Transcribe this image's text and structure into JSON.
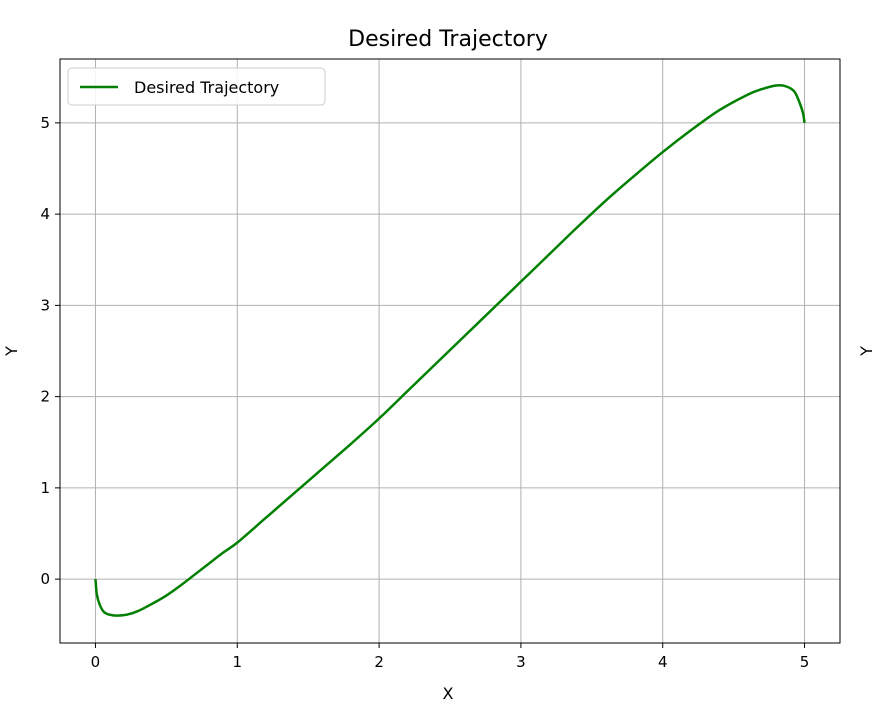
{
  "chart_data": {
    "type": "line",
    "title": "Desired Trajectory",
    "xlabel": "X",
    "ylabel": "Y",
    "ylabel_right": "Y",
    "xlim": [
      -0.25,
      5.25
    ],
    "ylim": [
      -0.7,
      5.7
    ],
    "xticks": [
      0,
      1,
      2,
      3,
      4,
      5
    ],
    "yticks": [
      0,
      1,
      2,
      3,
      4,
      5
    ],
    "grid": true,
    "legend_position": "top-left",
    "series": [
      {
        "name": "Desired Trajectory",
        "color": "#008000",
        "x": [
          0,
          0.01,
          0.03,
          0.06,
          0.1,
          0.15,
          0.22,
          0.3,
          0.4,
          0.5,
          0.6,
          0.7,
          0.8,
          0.9,
          1.0,
          1.2,
          1.4,
          1.6,
          1.8,
          2.0,
          2.2,
          2.4,
          2.6,
          2.8,
          3.0,
          3.2,
          3.4,
          3.6,
          3.8,
          4.0,
          4.2,
          4.4,
          4.6,
          4.7,
          4.8,
          4.87,
          4.93,
          4.97,
          4.99,
          5.0
        ],
        "y": [
          0,
          -0.17,
          -0.28,
          -0.36,
          -0.39,
          -0.4,
          -0.39,
          -0.35,
          -0.27,
          -0.18,
          -0.07,
          0.05,
          0.17,
          0.29,
          0.4,
          0.67,
          0.94,
          1.21,
          1.48,
          1.76,
          2.06,
          2.36,
          2.66,
          2.96,
          3.26,
          3.56,
          3.86,
          4.15,
          4.42,
          4.68,
          4.92,
          5.14,
          5.31,
          5.37,
          5.41,
          5.4,
          5.34,
          5.2,
          5.1,
          5.0
        ]
      }
    ]
  }
}
